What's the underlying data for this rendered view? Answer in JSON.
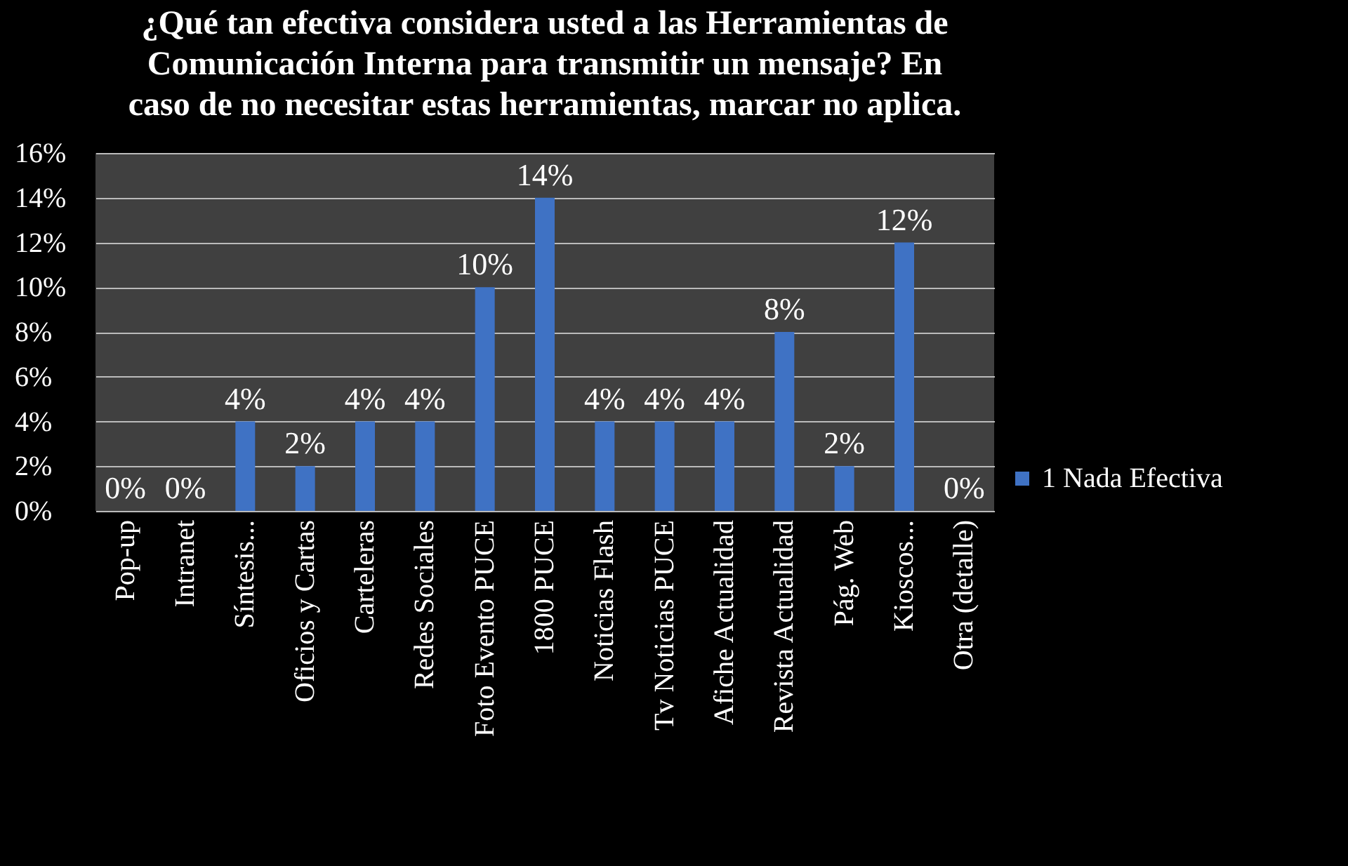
{
  "chart_data": {
    "type": "bar",
    "title": [
      "¿Qué tan efectiva considera usted a las Herramientas de",
      "Comunicación Interna para transmitir un mensaje? En",
      "caso de no necesitar estas herramientas, marcar no aplica."
    ],
    "categories": [
      "Pop-up",
      "Intranet",
      "Síntesis...",
      "Oficios y Cartas",
      "Carteleras",
      "Redes Sociales",
      "Foto Evento PUCE",
      "1800 PUCE",
      "Noticias Flash",
      "Tv Noticias PUCE",
      "Afiche Actualidad",
      "Revista Actualidad",
      "Pág. Web",
      "Kioscos...",
      "Otra (detalle)"
    ],
    "series": [
      {
        "name": "1 Nada Efectiva",
        "color": "#3f72c4",
        "values": [
          0,
          0,
          4,
          2,
          4,
          4,
          10,
          14,
          4,
          4,
          4,
          8,
          2,
          12,
          0
        ],
        "value_labels": [
          "0%",
          "0%",
          "4%",
          "2%",
          "4%",
          "4%",
          "10%",
          "14%",
          "4%",
          "4%",
          "4%",
          "8%",
          "2%",
          "12%",
          "0%"
        ]
      }
    ],
    "ylim": [
      0,
      16
    ],
    "yticks": [
      {
        "value": 0,
        "label": "0%"
      },
      {
        "value": 2,
        "label": "2%"
      },
      {
        "value": 4,
        "label": "4%"
      },
      {
        "value": 6,
        "label": "6%"
      },
      {
        "value": 8,
        "label": "8%"
      },
      {
        "value": 10,
        "label": "10%"
      },
      {
        "value": 12,
        "label": "12%"
      },
      {
        "value": 14,
        "label": "14%"
      },
      {
        "value": 16,
        "label": "16%"
      }
    ],
    "grid": "y",
    "legend": "right"
  }
}
